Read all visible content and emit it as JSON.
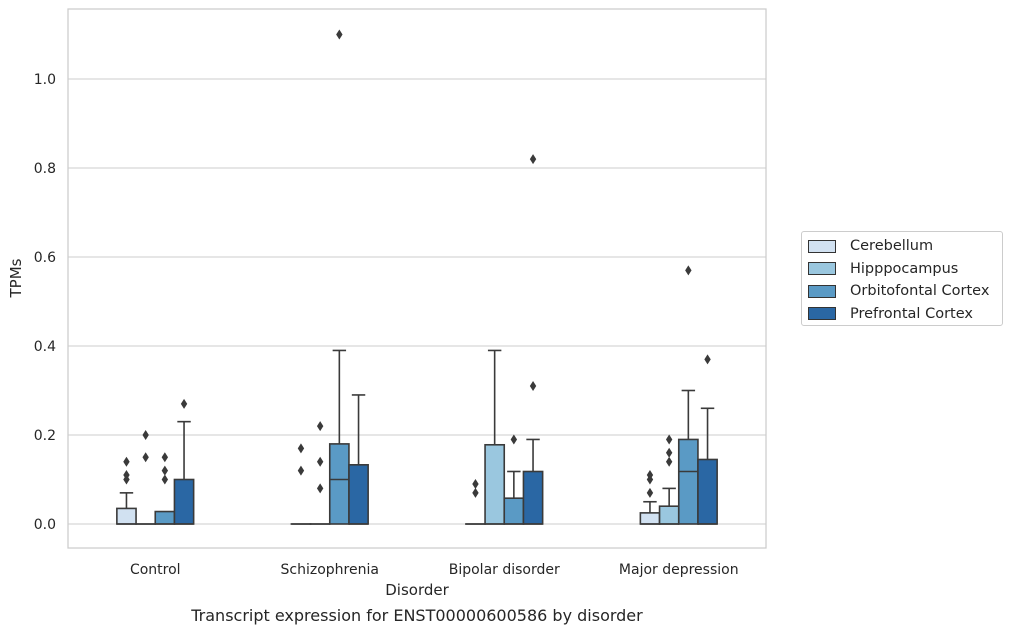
{
  "caption": "Transcript expression for ENST00000600586 by disorder",
  "chart_data": {
    "type": "box",
    "xlabel": "Disorder",
    "ylabel": "TPMs",
    "ylim": [
      -0.053,
      1.165
    ],
    "yticks": [
      0.0,
      0.2,
      0.4,
      0.6,
      0.8,
      1.0
    ],
    "ytick_labels": [
      "0.0",
      "0.2",
      "0.4",
      "0.6",
      "0.8",
      "1.0"
    ],
    "grid": "horizontal",
    "legend_position": "right",
    "categories": [
      "Control",
      "Schizophrenia",
      "Bipolar disorder",
      "Major depression"
    ],
    "series": [
      {
        "name": "Cerebellum",
        "color": "#d1e1f1",
        "boxes": [
          {
            "q1": 0.0,
            "median": 0.0,
            "q3": 0.035,
            "whislo": 0.0,
            "whishi": 0.07,
            "fliers": [
              0.1,
              0.11,
              0.14
            ]
          },
          {
            "q1": 0.0,
            "median": 0.0,
            "q3": 0.0,
            "whislo": 0.0,
            "whishi": 0.0,
            "fliers": [
              0.12,
              0.17
            ]
          },
          {
            "q1": 0.0,
            "median": 0.0,
            "q3": 0.0,
            "whislo": 0.0,
            "whishi": 0.0,
            "fliers": [
              0.07,
              0.09
            ]
          },
          {
            "q1": 0.0,
            "median": 0.0,
            "q3": 0.025,
            "whislo": 0.0,
            "whishi": 0.05,
            "fliers": [
              0.07,
              0.1,
              0.11
            ]
          }
        ]
      },
      {
        "name": "Hipppocampus",
        "color": "#9ac7df",
        "boxes": [
          {
            "q1": 0.0,
            "median": 0.0,
            "q3": 0.0,
            "whislo": 0.0,
            "whishi": 0.0,
            "fliers": [
              0.15,
              0.2
            ]
          },
          {
            "q1": 0.0,
            "median": 0.0,
            "q3": 0.0,
            "whislo": 0.0,
            "whishi": 0.0,
            "fliers": [
              0.08,
              0.14,
              0.22
            ]
          },
          {
            "q1": 0.0,
            "median": 0.0,
            "q3": 0.178,
            "whislo": 0.0,
            "whishi": 0.39,
            "fliers": []
          },
          {
            "q1": 0.0,
            "median": 0.0,
            "q3": 0.04,
            "whislo": 0.0,
            "whishi": 0.08,
            "fliers": [
              0.14,
              0.16,
              0.19
            ]
          }
        ]
      },
      {
        "name": "Orbitofontal Cortex",
        "color": "#5a9ac5",
        "boxes": [
          {
            "q1": 0.0,
            "median": 0.0,
            "q3": 0.028,
            "whislo": 0.0,
            "whishi": 0.028,
            "fliers": [
              0.1,
              0.12,
              0.15
            ]
          },
          {
            "q1": 0.0,
            "median": 0.1,
            "q3": 0.18,
            "whislo": 0.0,
            "whishi": 0.39,
            "fliers": [
              1.1
            ]
          },
          {
            "q1": 0.0,
            "median": 0.0,
            "q3": 0.058,
            "whislo": 0.0,
            "whishi": 0.118,
            "fliers": [
              0.19
            ]
          },
          {
            "q1": 0.0,
            "median": 0.118,
            "q3": 0.19,
            "whislo": 0.0,
            "whishi": 0.3,
            "fliers": [
              0.57
            ]
          }
        ]
      },
      {
        "name": "Prefrontal Cortex",
        "color": "#2a67a4",
        "boxes": [
          {
            "q1": 0.0,
            "median": 0.0,
            "q3": 0.1,
            "whislo": 0.0,
            "whishi": 0.23,
            "fliers": [
              0.27
            ]
          },
          {
            "q1": 0.0,
            "median": 0.0,
            "q3": 0.133,
            "whislo": 0.0,
            "whishi": 0.29,
            "fliers": []
          },
          {
            "q1": 0.0,
            "median": 0.0,
            "q3": 0.118,
            "whislo": 0.0,
            "whishi": 0.19,
            "fliers": [
              0.31,
              0.82
            ]
          },
          {
            "q1": 0.0,
            "median": 0.0,
            "q3": 0.145,
            "whislo": 0.0,
            "whishi": 0.26,
            "fliers": [
              0.37
            ]
          }
        ]
      }
    ]
  }
}
